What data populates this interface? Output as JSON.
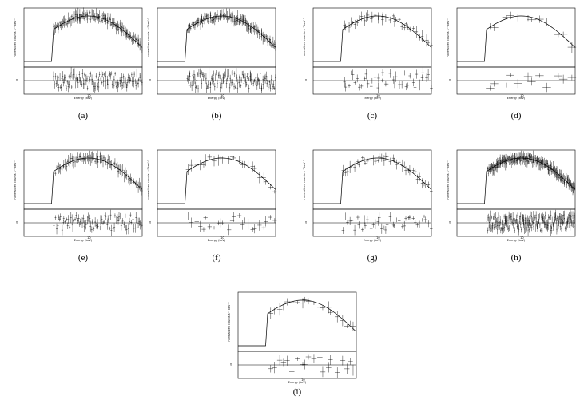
{
  "panels": [
    {
      "label": "(a)"
    },
    {
      "label": "(b)"
    },
    {
      "label": "(c)"
    },
    {
      "label": "(d)"
    },
    {
      "label": "(e)"
    },
    {
      "label": "(f)"
    },
    {
      "label": "(g)"
    },
    {
      "label": "(h)"
    },
    {
      "label": "(i)"
    }
  ],
  "axes": {
    "y_label": "normalized counts s⁻¹ keV⁻¹",
    "residual_label": "χ",
    "x_label": "Energy (keV)",
    "x_tick": "10"
  }
}
